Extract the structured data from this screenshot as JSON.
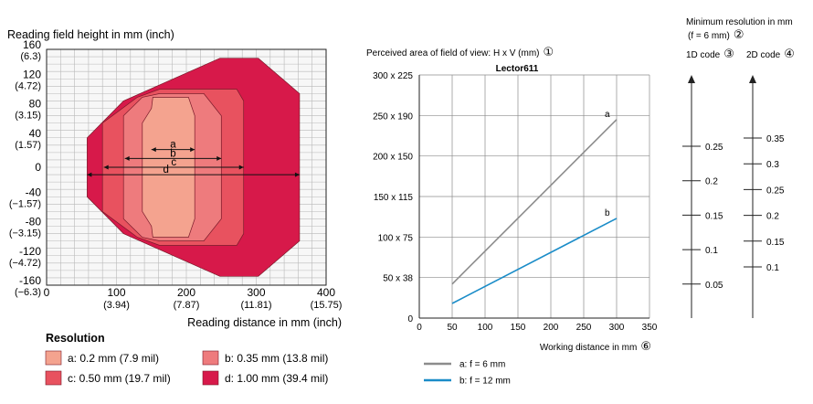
{
  "colors": {
    "zone_a": "#F4A38F",
    "zone_b": "#EE7B7D",
    "zone_c": "#E8525F",
    "zone_d": "#D7194A",
    "line_a": "#8C8C8C",
    "line_b": "#1A8CC8",
    "grid": "#b9b9b9",
    "axis": "#222222"
  },
  "left_chart": {
    "y_title": "Reading field height in mm (inch)",
    "x_title": "Reading distance in mm (inch)",
    "y_ticks": [
      {
        "mm": "160",
        "inch": "(6.3)"
      },
      {
        "mm": "120",
        "inch": "(4.72)"
      },
      {
        "mm": "80",
        "inch": "(3.15)"
      },
      {
        "mm": "40",
        "inch": "(1.57)"
      },
      {
        "mm": "0",
        "inch": ""
      },
      {
        "mm": "-40",
        "inch": "(−1.57)"
      },
      {
        "mm": "-80",
        "inch": "(−3.15)"
      },
      {
        "mm": "-120",
        "inch": "(−4.72)"
      },
      {
        "mm": "-160",
        "inch": "(−6.3)"
      }
    ],
    "x_ticks": [
      {
        "mm": "0",
        "inch": ""
      },
      {
        "mm": "100",
        "inch": "(3.94)"
      },
      {
        "mm": "200",
        "inch": "(7.87)"
      },
      {
        "mm": "300",
        "inch": "(11.81)"
      },
      {
        "mm": "400",
        "inch": "(15.75)"
      }
    ],
    "arrow_labels": [
      "a",
      "b",
      "c",
      "d"
    ],
    "legend_title": "Resolution",
    "legend": [
      {
        "key": "a",
        "label": "a: 0.2 mm (7.9 mil)"
      },
      {
        "key": "b",
        "label": "b: 0.35 mm (13.8 mil)"
      },
      {
        "key": "c",
        "label": "c: 0.50 mm (19.7 mil)"
      },
      {
        "key": "d",
        "label": "d: 1.00 mm (39.4 mil)"
      }
    ]
  },
  "chart_data": [
    {
      "type": "area",
      "xlabel": "Reading distance in mm (inch)",
      "ylabel": "Reading field height in mm (inch)",
      "xlim": [
        0,
        400
      ],
      "ylim": [
        -160,
        160
      ],
      "series": [
        {
          "name": "d: 1.00 mm (39.4 mil)",
          "key": "d",
          "points": [
            [
              58,
              40
            ],
            [
              58,
              -40
            ],
            [
              110,
              -90
            ],
            [
              248,
              -148
            ],
            [
              303,
              -148
            ],
            [
              362,
              -100
            ],
            [
              362,
              100
            ],
            [
              303,
              148
            ],
            [
              248,
              148
            ],
            [
              110,
              90
            ]
          ]
        },
        {
          "name": "c: 0.50 mm (19.7 mil)",
          "key": "c",
          "points": [
            [
              80,
              60
            ],
            [
              80,
              -60
            ],
            [
              130,
              -95
            ],
            [
              162,
              -106
            ],
            [
              272,
              -106
            ],
            [
              282,
              -90
            ],
            [
              282,
              90
            ],
            [
              272,
              106
            ],
            [
              162,
              106
            ],
            [
              130,
              95
            ]
          ]
        },
        {
          "name": "b: 0.35 mm (13.8 mil)",
          "key": "b",
          "points": [
            [
              110,
              70
            ],
            [
              110,
              -70
            ],
            [
              137,
              -95
            ],
            [
              162,
              -100
            ],
            [
              225,
              -100
            ],
            [
              250,
              -70
            ],
            [
              250,
              70
            ],
            [
              225,
              100
            ],
            [
              162,
              100
            ],
            [
              137,
              95
            ]
          ]
        },
        {
          "name": "a: 0.2 mm (7.9 mil)",
          "key": "a",
          "points": [
            [
              137,
              60
            ],
            [
              137,
              -60
            ],
            [
              150,
              -80
            ],
            [
              152,
              -95
            ],
            [
              203,
              -95
            ],
            [
              212,
              -70
            ],
            [
              212,
              70
            ],
            [
              203,
              95
            ],
            [
              152,
              95
            ],
            [
              150,
              80
            ]
          ]
        }
      ],
      "dimension_arrows": [
        {
          "label": "a",
          "x1": 150,
          "x2": 212
        },
        {
          "label": "b",
          "x1": 112,
          "x2": 250
        },
        {
          "label": "c",
          "x1": 82,
          "x2": 282
        },
        {
          "label": "d",
          "x1": 58,
          "x2": 362
        }
      ]
    },
    {
      "type": "line",
      "title": "Lector611",
      "ylabel": "Perceived area of field of view: H x V (mm)",
      "xlabel": "Working distance in mm",
      "xlim": [
        0,
        350
      ],
      "x_ticks": [
        0,
        50,
        100,
        150,
        200,
        250,
        300,
        350
      ],
      "y_ticks": [
        "0",
        "50 x 38",
        "100 x 75",
        "150 x 115",
        "200 x 150",
        "250 x 190",
        "300 x 225"
      ],
      "ylim": [
        0,
        300
      ],
      "series": [
        {
          "name": "a: f = 6 mm",
          "key": "a",
          "x": [
            50,
            300
          ],
          "y": [
            42,
            245
          ]
        },
        {
          "name": "b: f = 12 mm",
          "key": "b",
          "x": [
            50,
            300
          ],
          "y": [
            18,
            123
          ]
        }
      ]
    }
  ],
  "line_chart": {
    "ylabel": "Perceived area of field of view: H x V (mm)",
    "ylabel_ref": "①",
    "title": "Lector611",
    "xlabel": "Working distance in mm",
    "xlabel_ref": "⑥",
    "line_end_labels": [
      "a",
      "b"
    ],
    "legend": [
      {
        "key": "a",
        "label": "a: f = 6 mm"
      },
      {
        "key": "b",
        "label": "b: f = 12 mm"
      }
    ]
  },
  "resolution_scales": {
    "title_line1": "Minimum resolution in mm",
    "title_line2": "(f = 6 mm)",
    "title_ref": "②",
    "code1d_label": "1D code",
    "code1d_ref": "③",
    "code2d_label": "2D code",
    "code2d_ref": "④",
    "code1d_values": [
      "0.25",
      "0.2",
      "0.15",
      "0.1",
      "0.05"
    ],
    "code2d_values": [
      "0.35",
      "0.3",
      "0.25",
      "0.2",
      "0.15",
      "0.1"
    ]
  }
}
